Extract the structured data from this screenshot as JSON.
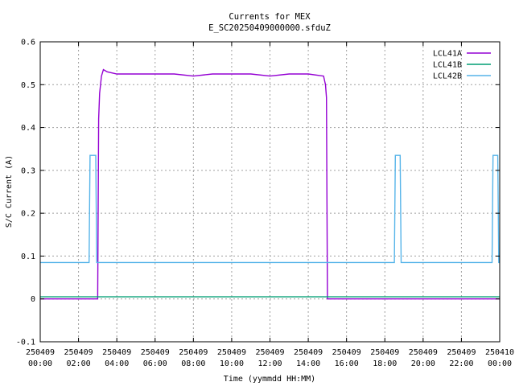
{
  "chart_data": {
    "type": "line",
    "title": "Currents for MEX",
    "subtitle": "E_SC20250409000000.sfduZ",
    "xlabel": "Time (yymmdd HH:MM)",
    "ylabel": "S/C Current (A)",
    "xlim": [
      0,
      24
    ],
    "ylim": [
      -0.1,
      0.6
    ],
    "grid": true,
    "legend_position": "top-right",
    "yticks": [
      {
        "value": -0.1,
        "label": "-0.1"
      },
      {
        "value": 0,
        "label": "0"
      },
      {
        "value": 0.1,
        "label": "0.1"
      },
      {
        "value": 0.2,
        "label": "0.2"
      },
      {
        "value": 0.3,
        "label": "0.3"
      },
      {
        "value": 0.4,
        "label": "0.4"
      },
      {
        "value": 0.5,
        "label": "0.5"
      },
      {
        "value": 0.6,
        "label": "0.6"
      }
    ],
    "xticks": [
      {
        "value": 0,
        "date": "250409",
        "time": "00:00"
      },
      {
        "value": 2,
        "date": "250409",
        "time": "02:00"
      },
      {
        "value": 4,
        "date": "250409",
        "time": "04:00"
      },
      {
        "value": 6,
        "date": "250409",
        "time": "06:00"
      },
      {
        "value": 8,
        "date": "250409",
        "time": "08:00"
      },
      {
        "value": 10,
        "date": "250409",
        "time": "10:00"
      },
      {
        "value": 12,
        "date": "250409",
        "time": "12:00"
      },
      {
        "value": 14,
        "date": "250409",
        "time": "14:00"
      },
      {
        "value": 16,
        "date": "250409",
        "time": "16:00"
      },
      {
        "value": 18,
        "date": "250409",
        "time": "18:00"
      },
      {
        "value": 20,
        "date": "250409",
        "time": "20:00"
      },
      {
        "value": 22,
        "date": "250409",
        "time": "22:00"
      },
      {
        "value": 24,
        "date": "250410",
        "time": "00:00"
      }
    ],
    "series": [
      {
        "name": "LCL41A",
        "color": "#9400d3",
        "x": [
          0,
          3.0,
          3.05,
          3.1,
          3.2,
          3.3,
          3.5,
          4.0,
          5.0,
          6.0,
          7.0,
          8.0,
          9.0,
          10.0,
          11.0,
          12.0,
          13.0,
          14.0,
          14.8,
          14.9,
          14.95,
          15.0,
          24
        ],
        "y": [
          0,
          0,
          0.42,
          0.48,
          0.52,
          0.535,
          0.53,
          0.525,
          0.525,
          0.525,
          0.525,
          0.52,
          0.525,
          0.525,
          0.525,
          0.52,
          0.525,
          0.525,
          0.52,
          0.5,
          0.47,
          0,
          0
        ]
      },
      {
        "name": "LCL41B",
        "color": "#009e73",
        "x": [
          0,
          24
        ],
        "y": [
          0.005,
          0.005
        ]
      },
      {
        "name": "LCL42B",
        "color": "#56b4e9",
        "x": [
          0,
          2.55,
          2.6,
          2.9,
          2.95,
          18.5,
          18.55,
          18.8,
          18.85,
          23.6,
          23.65,
          23.9,
          23.95,
          24
        ],
        "y": [
          0.085,
          0.085,
          0.335,
          0.335,
          0.085,
          0.085,
          0.335,
          0.335,
          0.085,
          0.085,
          0.335,
          0.335,
          0.085,
          0.085
        ]
      }
    ]
  }
}
